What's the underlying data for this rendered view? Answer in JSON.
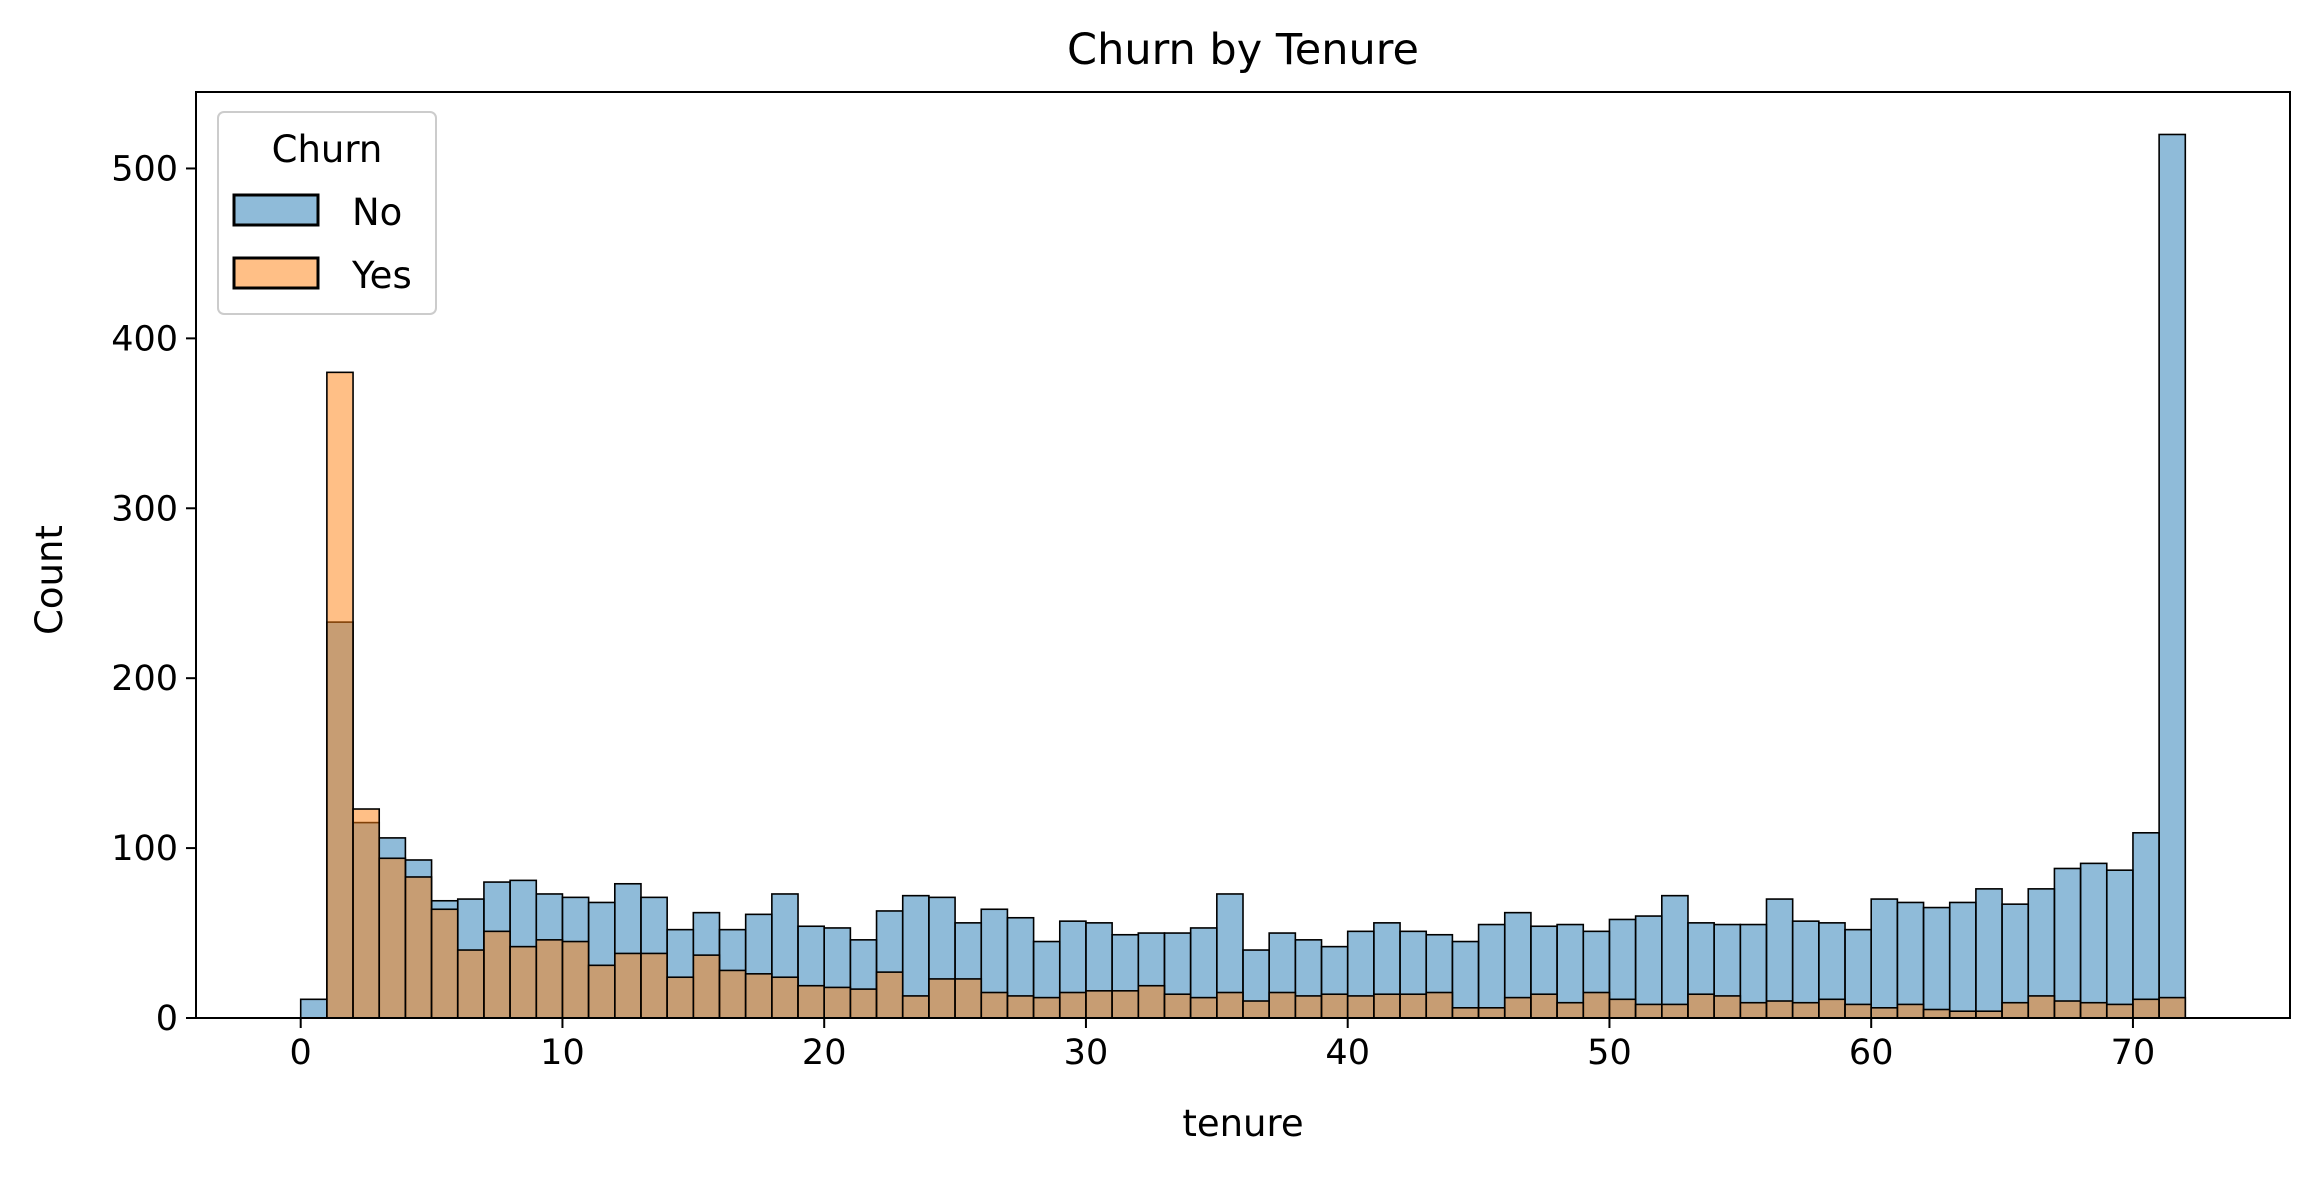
{
  "chart_data": {
    "type": "bar",
    "subtype": "overlapping-histogram",
    "title": "Churn by Tenure",
    "xlabel": "tenure",
    "ylabel": "Count",
    "xlim": [
      -4,
      76
    ],
    "ylim": [
      0,
      545
    ],
    "xticks": [
      0,
      10,
      20,
      30,
      40,
      50,
      60,
      70
    ],
    "yticks": [
      0,
      100,
      200,
      300,
      400,
      500
    ],
    "xtick_labels": [
      "0",
      "10",
      "20",
      "30",
      "40",
      "50",
      "60",
      "70"
    ],
    "ytick_labels": [
      "0",
      "100",
      "200",
      "300",
      "400",
      "500"
    ],
    "bin_start": 0,
    "bin_width": 1,
    "grid": false,
    "legend": {
      "title": "Churn",
      "position": "top-left",
      "entries": [
        {
          "label": "No",
          "color": "#1f77b4"
        },
        {
          "label": "Yes",
          "color": "#ff7f0e"
        }
      ]
    },
    "series": [
      {
        "name": "No",
        "color": "#1f77b4",
        "values": [
          11,
          233,
          115,
          106,
          93,
          69,
          70,
          80,
          81,
          73,
          71,
          68,
          79,
          71,
          52,
          62,
          52,
          61,
          73,
          54,
          53,
          46,
          63,
          72,
          71,
          56,
          64,
          59,
          45,
          57,
          56,
          49,
          50,
          50,
          53,
          73,
          40,
          50,
          46,
          42,
          51,
          56,
          51,
          49,
          45,
          55,
          62,
          54,
          55,
          51,
          58,
          60,
          72,
          56,
          55,
          55,
          70,
          57,
          56,
          52,
          70,
          68,
          65,
          68,
          76,
          67,
          76,
          88,
          91,
          87,
          109,
          520
        ]
      },
      {
        "name": "Yes",
        "color": "#ff7f0e",
        "values": [
          0,
          380,
          123,
          94,
          83,
          64,
          40,
          51,
          42,
          46,
          45,
          31,
          38,
          38,
          24,
          37,
          28,
          26,
          24,
          19,
          18,
          17,
          27,
          13,
          23,
          23,
          15,
          13,
          12,
          15,
          16,
          16,
          19,
          14,
          12,
          15,
          10,
          15,
          13,
          14,
          13,
          14,
          14,
          15,
          6,
          6,
          12,
          14,
          9,
          15,
          11,
          8,
          8,
          14,
          13,
          9,
          10,
          9,
          11,
          8,
          6,
          8,
          5,
          4,
          4,
          9,
          13,
          10,
          9,
          8,
          11,
          12
        ]
      }
    ]
  }
}
